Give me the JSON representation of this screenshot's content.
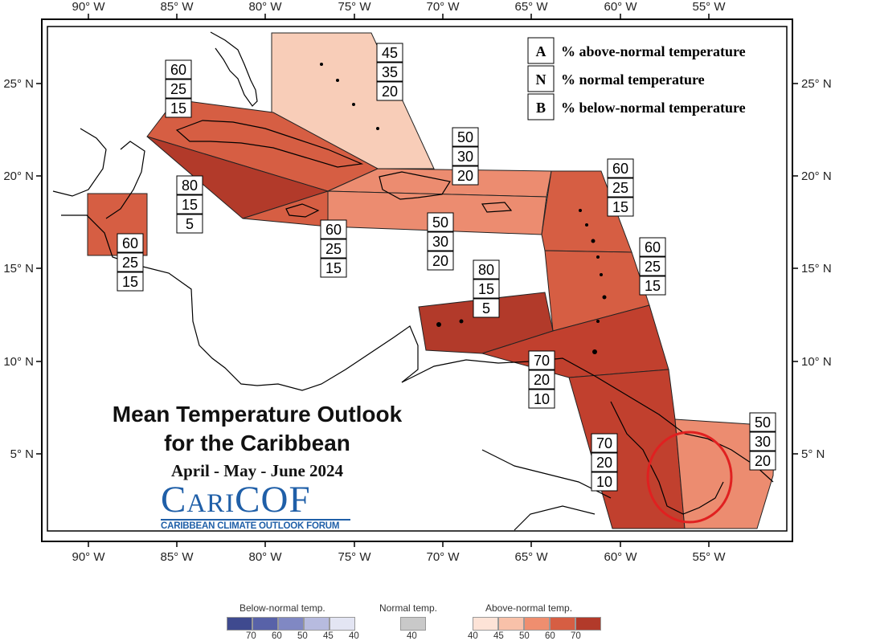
{
  "map": {
    "title_line1": "Mean Temperature Outlook",
    "title_line2": "for the Caribbean",
    "period": "April - May - June 2024",
    "logo_word": "CariCOF",
    "logo_tagline": "CARIBBEAN CLIMATE OUTLOOK FORUM",
    "lon_ticks": [
      "90° W",
      "85° W",
      "80° W",
      "75° W",
      "70° W",
      "65° W",
      "60° W",
      "55° W"
    ],
    "lat_ticks": [
      "25° N",
      "20° N",
      "15° N",
      "10° N",
      "5° N"
    ],
    "key": [
      {
        "letter": "A",
        "text": "% above-normal temperature"
      },
      {
        "letter": "N",
        "text": "% normal temperature"
      },
      {
        "letter": "B",
        "text": "% below-normal temperature"
      }
    ],
    "zones": [
      {
        "id": "bahamas",
        "A": "45",
        "N": "35",
        "B": "20",
        "color": "#f8cdb8"
      },
      {
        "id": "cuba-west",
        "A": "60",
        "N": "25",
        "B": "15",
        "color": "#d65e43"
      },
      {
        "id": "cayman-jamaica",
        "A": "80",
        "N": "15",
        "B": "5",
        "color": "#b23a2a"
      },
      {
        "id": "belize",
        "A": "60",
        "N": "25",
        "B": "15",
        "color": "#d65e43"
      },
      {
        "id": "jamaica-east",
        "A": "60",
        "N": "25",
        "B": "15",
        "color": "#d65e43"
      },
      {
        "id": "hispaniola",
        "A": "50",
        "N": "30",
        "B": "20",
        "color": "#ec8c70"
      },
      {
        "id": "hispaniola-south",
        "A": "50",
        "N": "30",
        "B": "20",
        "color": "#ec8c70"
      },
      {
        "id": "leeward",
        "A": "60",
        "N": "25",
        "B": "15",
        "color": "#d65e43"
      },
      {
        "id": "windward",
        "A": "60",
        "N": "25",
        "B": "15",
        "color": "#d65e43"
      },
      {
        "id": "abc-islands",
        "A": "80",
        "N": "15",
        "B": "5",
        "color": "#b23a2a"
      },
      {
        "id": "trinidad",
        "A": "70",
        "N": "20",
        "B": "10",
        "color": "#c1402e"
      },
      {
        "id": "guyana",
        "A": "70",
        "N": "20",
        "B": "10",
        "color": "#c1402e"
      },
      {
        "id": "french-guiana",
        "A": "50",
        "N": "30",
        "B": "20",
        "color": "#ec8c70"
      }
    ]
  },
  "legend": {
    "below_label": "Below-normal temp.",
    "normal_label": "Normal temp.",
    "above_label": "Above-normal temp.",
    "below_colors": [
      "#3f4a8f",
      "#5862a8",
      "#8088c3",
      "#b7bbdf",
      "#e3e5f3"
    ],
    "below_values": [
      "70",
      "60",
      "50",
      "45",
      "40"
    ],
    "normal_color": "#c9c9c9",
    "normal_value": "40",
    "above_colors": [
      "#fde3d7",
      "#f8c1a9",
      "#ef8e6f",
      "#d65e43",
      "#b23a2a"
    ],
    "above_values": [
      "40",
      "45",
      "50",
      "60",
      "70"
    ]
  }
}
